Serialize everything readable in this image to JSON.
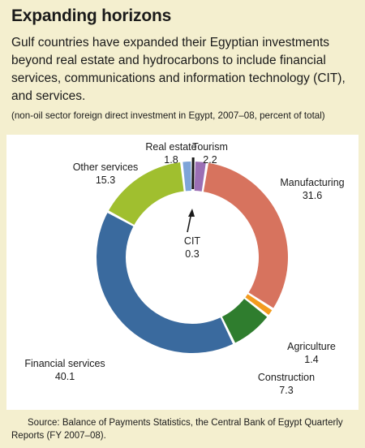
{
  "title": "Expanding horizons",
  "subtitle": "Gulf countries have expanded their Egyptian investments beyond real estate and hydrocarbons to include financial services, communications and information technology (CIT), and services.",
  "note": "(non-oil sector foreign direct investment in Egypt, 2007–08, percent of total)",
  "source": "Source: Balance of Payments Statistics, the Central Bank of Egypt Quarterly Reports (FY 2007–08).",
  "chart_data": {
    "type": "pie",
    "style": "donut",
    "categories": [
      "CIT",
      "Tourism",
      "Manufacturing",
      "Agriculture",
      "Construction",
      "Financial services",
      "Other services",
      "Real estate"
    ],
    "values": [
      0.3,
      2.2,
      31.6,
      1.4,
      7.3,
      40.1,
      15.3,
      1.8
    ],
    "value_labels": [
      "0.3",
      "2.2",
      "31.6",
      "1.4",
      "7.3",
      "40.1",
      "15.3",
      "1.8"
    ],
    "colors": [
      "#1a1a1a",
      "#9b6fb4",
      "#d7735e",
      "#f39b1e",
      "#2f7d2e",
      "#3a6a9e",
      "#a0bf2f",
      "#7ea4d8"
    ]
  }
}
